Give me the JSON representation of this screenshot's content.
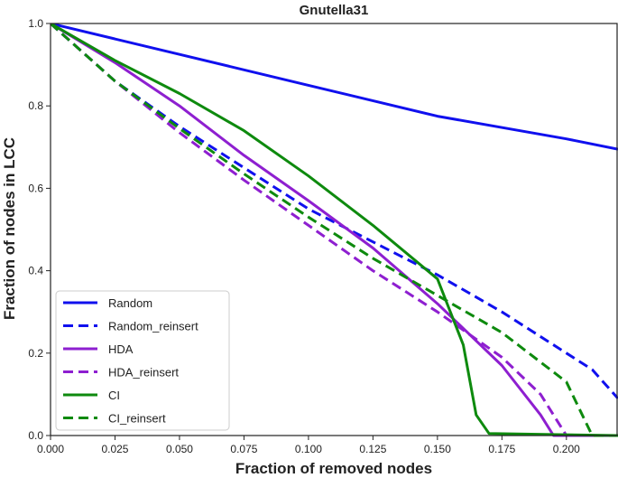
{
  "chart_data": {
    "type": "line",
    "title": "Gnutella31",
    "xlabel": "Fraction of removed nodes",
    "ylabel": "Fraction of nodes in LCC",
    "xlim": [
      0.0,
      0.22
    ],
    "ylim": [
      0.0,
      1.0
    ],
    "xticks": [
      "0.000",
      "0.025",
      "0.050",
      "0.075",
      "0.100",
      "0.125",
      "0.150",
      "0.175",
      "0.200"
    ],
    "yticks": [
      "0.0",
      "0.2",
      "0.4",
      "0.6",
      "0.8",
      "1.0"
    ],
    "grid": false,
    "legend_position": "bottom-left",
    "series": [
      {
        "name": "Random",
        "color": "#1010ee",
        "style": "solid",
        "x": [
          0.0,
          0.05,
          0.1,
          0.15,
          0.2,
          0.22
        ],
        "y": [
          1.0,
          0.925,
          0.85,
          0.775,
          0.72,
          0.695
        ]
      },
      {
        "name": "Random_reinsert",
        "color": "#1010ee",
        "style": "dashed",
        "x": [
          0.0,
          0.025,
          0.05,
          0.075,
          0.1,
          0.125,
          0.15,
          0.175,
          0.2,
          0.21,
          0.22
        ],
        "y": [
          1.0,
          0.86,
          0.75,
          0.65,
          0.55,
          0.47,
          0.39,
          0.3,
          0.2,
          0.16,
          0.09
        ]
      },
      {
        "name": "HDA",
        "color": "#8e1fd0",
        "style": "solid",
        "x": [
          0.0,
          0.025,
          0.05,
          0.075,
          0.1,
          0.125,
          0.15,
          0.175,
          0.19,
          0.195,
          0.22
        ],
        "y": [
          1.0,
          0.905,
          0.8,
          0.68,
          0.57,
          0.455,
          0.32,
          0.17,
          0.05,
          0.0,
          0.0
        ]
      },
      {
        "name": "HDA_reinsert",
        "color": "#8e1fd0",
        "style": "dashed",
        "x": [
          0.0,
          0.025,
          0.05,
          0.075,
          0.1,
          0.125,
          0.15,
          0.175,
          0.19,
          0.2,
          0.22
        ],
        "y": [
          1.0,
          0.86,
          0.735,
          0.62,
          0.51,
          0.4,
          0.3,
          0.19,
          0.1,
          0.0,
          0.0
        ]
      },
      {
        "name": "CI",
        "color": "#0e8a0e",
        "style": "solid",
        "x": [
          0.0,
          0.025,
          0.05,
          0.075,
          0.1,
          0.125,
          0.15,
          0.16,
          0.165,
          0.17,
          0.22
        ],
        "y": [
          1.0,
          0.91,
          0.83,
          0.74,
          0.63,
          0.51,
          0.38,
          0.22,
          0.05,
          0.005,
          0.0
        ]
      },
      {
        "name": "CI_reinsert",
        "color": "#0e8a0e",
        "style": "dashed",
        "x": [
          0.0,
          0.025,
          0.05,
          0.075,
          0.1,
          0.125,
          0.15,
          0.175,
          0.2,
          0.21,
          0.22
        ],
        "y": [
          1.0,
          0.86,
          0.745,
          0.635,
          0.53,
          0.43,
          0.34,
          0.25,
          0.13,
          0.0,
          0.0
        ]
      }
    ]
  }
}
